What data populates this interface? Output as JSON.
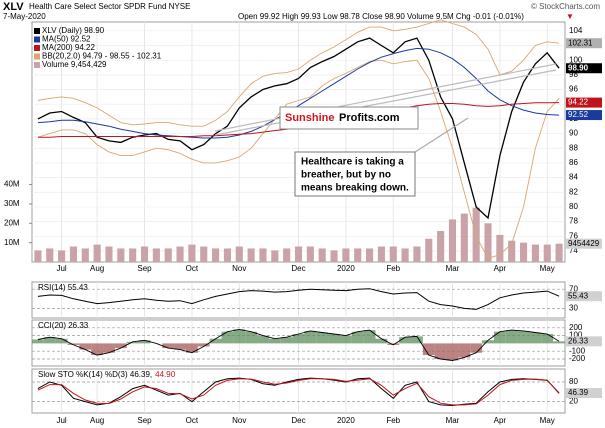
{
  "chart_data": [
    {
      "type": "line",
      "title": "XLV",
      "subtitle": "Health Care Select Sector SPDR Fund NYSE",
      "date": "7-May-2020",
      "quote": "Open 99.92 High 99.93 Low 98.78 Close 98.90 Volume 9.5M Chg -0.01 (-0.01%)",
      "quote_arrow": "▼",
      "source": "© StockCharts.com",
      "categories": [
        null,
        null,
        "Jul",
        null,
        null,
        "Aug",
        null,
        null,
        null,
        "Sep",
        null,
        null,
        null,
        "Oct",
        null,
        null,
        null,
        "Nov",
        null,
        null,
        null,
        null,
        "Dec",
        null,
        null,
        null,
        "2020",
        null,
        null,
        null,
        "Feb",
        null,
        null,
        null,
        null,
        "Mar",
        null,
        null,
        null,
        "Apr",
        null,
        null,
        null,
        "May",
        null
      ],
      "series": [
        {
          "name": "XLV (Daily) 98.90",
          "color": "#000000",
          "values": [
            92.0,
            92.8,
            93.0,
            92.2,
            91.5,
            89.5,
            89.0,
            88.8,
            89.5,
            89.8,
            90.0,
            89.2,
            89.0,
            87.8,
            88.5,
            90.0,
            91.0,
            93.5,
            95.0,
            96.0,
            96.5,
            96.8,
            97.5,
            99.0,
            99.8,
            100.5,
            101.5,
            102.5,
            103.0,
            102.0,
            101.0,
            102.5,
            103.0,
            100.0,
            95.0,
            92.0,
            86.0,
            80.0,
            78.5,
            87.0,
            93.0,
            97.0,
            99.5,
            101.0,
            98.9
          ]
        },
        {
          "name": "MA(50) 92.52",
          "color": "#1a3a9c",
          "values": [
            91.5,
            91.6,
            91.8,
            91.8,
            91.6,
            91.3,
            91.0,
            90.6,
            90.3,
            90.0,
            89.8,
            89.7,
            89.6,
            89.5,
            89.4,
            89.4,
            89.5,
            89.8,
            90.3,
            91.0,
            91.9,
            92.8,
            93.8,
            94.8,
            95.8,
            96.8,
            97.8,
            98.8,
            99.7,
            100.4,
            100.9,
            101.3,
            101.6,
            101.5,
            101.0,
            100.2,
            99.0,
            97.5,
            95.8,
            94.6,
            93.8,
            93.2,
            92.8,
            92.6,
            92.52
          ]
        },
        {
          "name": "MA(200) 94.22",
          "color": "#c0141c",
          "values": [
            89.5,
            89.5,
            89.6,
            89.6,
            89.6,
            89.6,
            89.6,
            89.6,
            89.6,
            89.6,
            89.6,
            89.6,
            89.6,
            89.6,
            89.7,
            89.7,
            89.8,
            89.9,
            90.0,
            90.2,
            90.4,
            90.6,
            90.8,
            91.1,
            91.4,
            91.7,
            92.0,
            92.3,
            92.6,
            92.9,
            93.2,
            93.5,
            93.8,
            94.0,
            94.1,
            94.1,
            94.0,
            93.8,
            93.7,
            93.8,
            94.0,
            94.1,
            94.2,
            94.2,
            94.22
          ]
        }
      ],
      "band": {
        "name": "BB(20,2.0) 94.79 - 98.55 - 102.31",
        "color": "#dba66c",
        "upper": [
          94.5,
          94.8,
          95.0,
          94.8,
          94.2,
          93.5,
          92.5,
          91.5,
          91.2,
          91.3,
          91.5,
          91.5,
          91.2,
          91.0,
          91.0,
          91.8,
          93.0,
          95.0,
          96.8,
          97.8,
          98.2,
          98.3,
          98.8,
          100.0,
          101.0,
          101.8,
          102.8,
          103.8,
          104.5,
          104.5,
          104.0,
          104.2,
          104.5,
          105.0,
          105.5,
          105.0,
          104.5,
          103.5,
          101.5,
          98.0,
          98.5,
          100.0,
          102.0,
          102.5,
          102.31
        ],
        "lower": [
          89.5,
          90.0,
          90.5,
          90.5,
          90.0,
          88.5,
          87.5,
          87.0,
          87.0,
          87.5,
          88.0,
          87.8,
          87.3,
          86.5,
          86.0,
          86.0,
          86.3,
          86.8,
          88.0,
          90.0,
          92.0,
          94.0,
          94.5,
          95.0,
          96.5,
          97.5,
          98.2,
          99.0,
          99.8,
          100.0,
          99.5,
          99.8,
          100.0,
          97.5,
          93.0,
          88.0,
          82.0,
          76.0,
          73.0,
          73.5,
          75.0,
          80.0,
          88.0,
          93.0,
          94.79
        ]
      },
      "ylim": [
        72.5,
        105.2
      ],
      "yticks": [
        74,
        76,
        78,
        80,
        82,
        84,
        86,
        88,
        90,
        92,
        94,
        96,
        98,
        100,
        102,
        104
      ],
      "grid": true,
      "tags": [
        102.31,
        {
          "value": 98.9,
          "label": "98.90"
        },
        94.22,
        92.52
      ],
      "tag_colors": [
        "#b0b0b0",
        "#000000",
        "#c0141c",
        "#1a3a9c"
      ],
      "annotations": {
        "logo_a": "Sunshine",
        "logo_b": "Profits.com",
        "note": [
          "Healthcare is taking a",
          "breather, but by no",
          "means breaking down."
        ]
      }
    },
    {
      "type": "bar",
      "name": "Volume 9,454,429",
      "color": "#c9a3a8",
      "values": [
        6,
        7,
        6,
        8,
        7,
        9,
        8,
        7,
        7,
        8,
        7,
        7,
        8,
        9,
        8,
        7,
        7,
        8,
        7,
        7,
        6,
        7,
        8,
        8,
        7,
        6,
        7,
        7,
        7,
        8,
        8,
        7,
        8,
        12,
        16,
        22,
        25,
        28,
        20,
        14,
        11,
        10,
        9,
        9,
        9.454429
      ],
      "ylim": [
        0,
        124
      ],
      "yticks": [
        {
          "value": 10,
          "label": "10M"
        },
        {
          "value": 20,
          "label": "20M"
        },
        {
          "value": 30,
          "label": "30M"
        },
        {
          "value": 40,
          "label": "40M"
        }
      ],
      "tags": [
        {
          "value": 9.454429,
          "label": "9454429"
        }
      ]
    },
    {
      "type": "line",
      "title": "RSI(14) 55.43",
      "series": [
        {
          "color": "#000000",
          "values": [
            55,
            58,
            57,
            50,
            45,
            40,
            42,
            45,
            48,
            50,
            47,
            45,
            46,
            40,
            48,
            55,
            60,
            65,
            67,
            66,
            64,
            65,
            68,
            70,
            69,
            68,
            67,
            70,
            71,
            65,
            60,
            62,
            63,
            45,
            38,
            35,
            30,
            28,
            38,
            52,
            58,
            62,
            64,
            66,
            55.43
          ]
        }
      ],
      "ylim": [
        10,
        85
      ],
      "yticks": [
        30,
        70
      ],
      "tags": [
        55.43
      ]
    },
    {
      "type": "area",
      "title": "CCI(20) 26.33",
      "pos_color": "#5d8c5d",
      "neg_color": "#a55a5a",
      "series": [
        {
          "color": "#000000",
          "values": [
            50,
            80,
            60,
            -20,
            -80,
            -150,
            -120,
            -60,
            20,
            40,
            0,
            -60,
            -80,
            -120,
            -40,
            60,
            150,
            180,
            150,
            100,
            60,
            80,
            120,
            160,
            140,
            120,
            100,
            150,
            170,
            60,
            -20,
            80,
            90,
            -150,
            -200,
            -220,
            -180,
            -120,
            40,
            150,
            170,
            160,
            140,
            120,
            26.33
          ]
        }
      ],
      "ylim": [
        -290,
        300
      ],
      "yticks": [
        -200,
        -100,
        100,
        200
      ],
      "tags": [
        26.33
      ]
    },
    {
      "type": "line",
      "title": "Slow STO %K(14) %D(3) 46.39,",
      "title_extra": "44.90",
      "title_extra_color": "#c0141c",
      "categories": [
        null,
        null,
        "Jul",
        null,
        null,
        "Aug",
        null,
        null,
        null,
        "Sep",
        null,
        null,
        null,
        "Oct",
        null,
        null,
        null,
        "Nov",
        null,
        null,
        null,
        null,
        "Dec",
        null,
        null,
        null,
        "2020",
        null,
        null,
        null,
        "Feb",
        null,
        null,
        null,
        null,
        "Mar",
        null,
        null,
        null,
        "Apr",
        null,
        null,
        null,
        "May",
        null
      ],
      "series": [
        {
          "color": "#000000",
          "values": [
            60,
            80,
            70,
            30,
            20,
            10,
            15,
            35,
            60,
            70,
            55,
            40,
            45,
            20,
            50,
            80,
            90,
            92,
            88,
            75,
            70,
            80,
            88,
            92,
            90,
            86,
            80,
            90,
            92,
            60,
            30,
            70,
            80,
            20,
            10,
            8,
            12,
            15,
            50,
            80,
            88,
            90,
            88,
            85,
            46.39
          ]
        },
        {
          "color": "#c0141c",
          "values": [
            55,
            72,
            72,
            45,
            25,
            15,
            14,
            28,
            50,
            65,
            60,
            45,
            44,
            28,
            40,
            70,
            85,
            90,
            89,
            80,
            73,
            77,
            85,
            90,
            90,
            88,
            82,
            86,
            90,
            70,
            40,
            60,
            76,
            35,
            15,
            10,
            10,
            13,
            40,
            72,
            85,
            88,
            89,
            86,
            44.9
          ]
        }
      ],
      "ylim": [
        -15,
        120
      ],
      "yticks": [
        20,
        80
      ],
      "tags": [
        46.39
      ]
    }
  ]
}
